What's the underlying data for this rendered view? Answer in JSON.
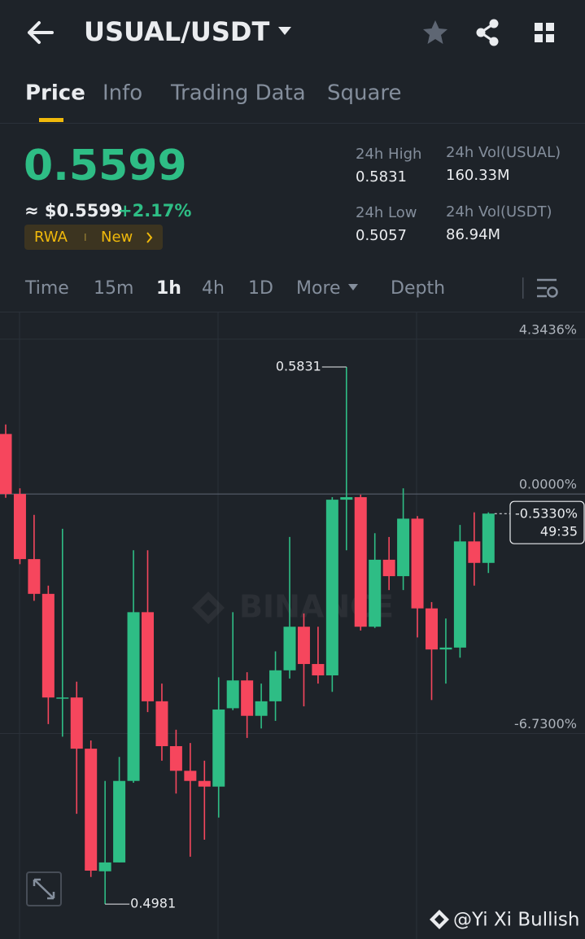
{
  "header": {
    "pair": "USUAL/USDT"
  },
  "tabs": [
    "Price",
    "Info",
    "Trading Data",
    "Square"
  ],
  "ticker": {
    "price": "0.5599",
    "usd_price": "≈ $0.5599",
    "change": "+2.17%",
    "tags": [
      "RWA",
      "New"
    ],
    "stats": [
      {
        "label": "24h High",
        "value": "0.5831"
      },
      {
        "label": "24h Vol(USUAL)",
        "value": "160.33M"
      },
      {
        "label": "24h Low",
        "value": "0.5057"
      },
      {
        "label": "24h Vol(USDT)",
        "value": "86.94M"
      }
    ]
  },
  "intervals": [
    "Time",
    "15m",
    "1h",
    "4h",
    "1D",
    "More",
    "Depth"
  ],
  "chart_data": {
    "type": "candlestick",
    "categories": [
      null,
      null,
      null,
      null,
      null,
      null,
      null,
      null,
      null,
      null,
      null,
      null,
      null,
      null,
      null,
      null,
      null,
      null,
      null,
      null,
      null,
      null,
      null,
      null,
      null,
      null,
      null,
      null,
      null,
      null,
      null,
      null,
      null,
      null,
      null
    ],
    "open": [
      0.5725,
      0.563,
      0.5527,
      0.5472,
      0.5308,
      0.5308,
      0.5227,
      0.5033,
      0.5047,
      0.5176,
      0.5443,
      0.5302,
      0.5231,
      0.5192,
      0.5176,
      0.5167,
      0.5291,
      0.5335,
      0.5279,
      0.5302,
      0.5351,
      0.542,
      0.5361,
      0.5343,
      0.5621,
      0.5625,
      0.542,
      0.5526,
      0.55,
      0.5591,
      0.5449,
      0.5384,
      0.5387,
      0.5555,
      0.5521
    ],
    "high": [
      0.574,
      0.5639,
      0.5597,
      0.5485,
      0.5575,
      0.5333,
      0.524,
      0.5176,
      0.5214,
      0.5541,
      0.5541,
      0.533,
      0.5257,
      0.5236,
      0.5208,
      0.534,
      0.5443,
      0.5348,
      0.533,
      0.5381,
      0.5562,
      0.5441,
      0.542,
      0.5625,
      0.5831,
      0.5629,
      0.5568,
      0.5562,
      0.5639,
      0.5595,
      0.5459,
      0.5433,
      0.5581,
      0.5601,
      0.5601
    ],
    "low": [
      0.5624,
      0.5519,
      0.5461,
      0.5266,
      0.5246,
      0.5124,
      0.5024,
      0.4981,
      0.5047,
      0.5173,
      0.5285,
      0.5208,
      0.5156,
      0.5056,
      0.5083,
      0.5118,
      0.5288,
      0.5244,
      0.5259,
      0.5271,
      0.5338,
      0.5294,
      0.533,
      0.5317,
      0.5541,
      0.5414,
      0.5418,
      0.5478,
      0.5478,
      0.5403,
      0.5304,
      0.533,
      0.5371,
      0.5485,
      0.5505
    ],
    "close": [
      0.563,
      0.5527,
      0.5472,
      0.5308,
      0.5308,
      0.5227,
      0.5034,
      0.5047,
      0.5176,
      0.5443,
      0.5302,
      0.5231,
      0.5192,
      0.5176,
      0.5167,
      0.5289,
      0.5335,
      0.5279,
      0.5302,
      0.5351,
      0.542,
      0.5361,
      0.5343,
      0.5621,
      0.5625,
      0.542,
      0.5526,
      0.55,
      0.5591,
      0.5449,
      0.5384,
      0.5387,
      0.5555,
      0.5521,
      0.5599
    ],
    "up_color": "#2ebd85",
    "down_color": "#f6465d",
    "ylim": [
      0.4931,
      0.5916
    ],
    "yticks": [
      {
        "value": 0.5875,
        "label": "4.3436%"
      },
      {
        "value": 0.563,
        "label": "0.0000%"
      },
      {
        "value": 0.5251,
        "label": "-6.7300%"
      }
    ],
    "grid": true,
    "annotations": {
      "high_label": "0.5831",
      "low_label": "0.4981",
      "last_change": "-0.5330%",
      "countdown": "49:35"
    },
    "watermark": "BINANCE"
  },
  "footer": {
    "credit": "@Yi Xi Bullish"
  }
}
